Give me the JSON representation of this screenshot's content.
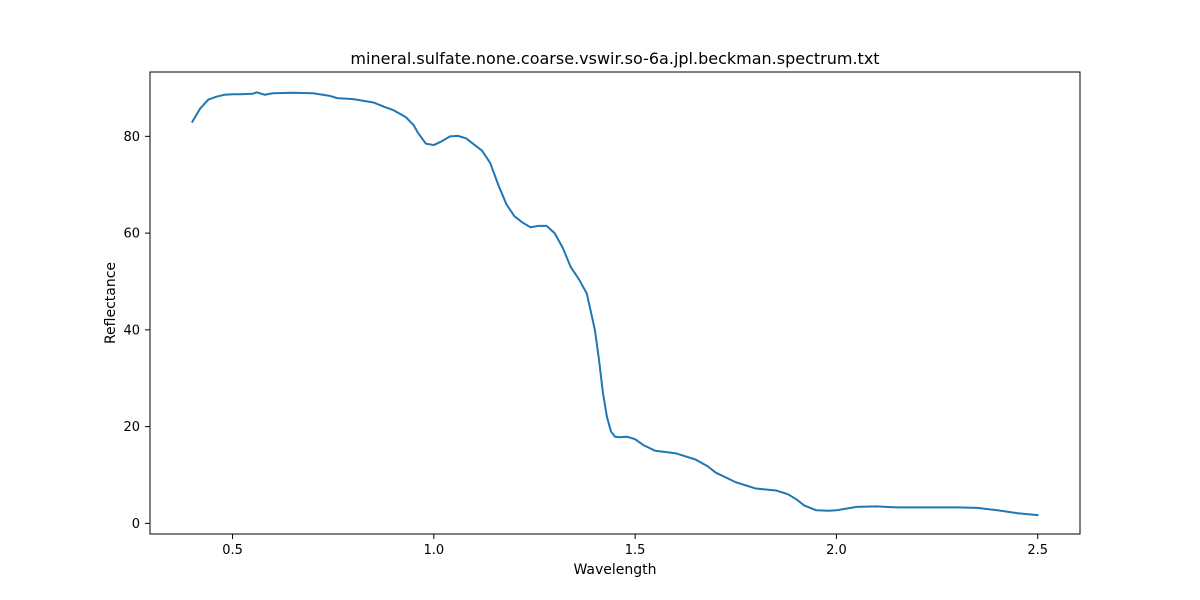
{
  "chart_data": {
    "type": "line",
    "title": "mineral.sulfate.none.coarse.vswir.so-6a.jpl.beckman.spectrum.txt",
    "xlabel": "Wavelength",
    "ylabel": "Reflectance",
    "xlim": [
      0.295,
      2.605
    ],
    "ylim": [
      -2.2,
      93.3
    ],
    "xticks": [
      0.5,
      1.0,
      1.5,
      2.0,
      2.5
    ],
    "xtick_labels": [
      "0.5",
      "1.0",
      "1.5",
      "2.0",
      "2.5"
    ],
    "yticks": [
      0,
      20,
      40,
      60,
      80
    ],
    "ytick_labels": [
      "0",
      "20",
      "40",
      "60",
      "80"
    ],
    "grid": false,
    "legend": "none",
    "series": [
      {
        "color": "#1f77b4",
        "x": [
          0.4,
          0.42,
          0.44,
          0.46,
          0.48,
          0.5,
          0.52,
          0.55,
          0.56,
          0.58,
          0.6,
          0.65,
          0.7,
          0.74,
          0.76,
          0.78,
          0.8,
          0.85,
          0.88,
          0.9,
          0.93,
          0.95,
          0.96,
          0.98,
          1.0,
          1.02,
          1.04,
          1.06,
          1.08,
          1.1,
          1.12,
          1.14,
          1.16,
          1.18,
          1.2,
          1.22,
          1.24,
          1.26,
          1.28,
          1.3,
          1.32,
          1.34,
          1.36,
          1.38,
          1.4,
          1.41,
          1.42,
          1.43,
          1.44,
          1.45,
          1.46,
          1.48,
          1.5,
          1.52,
          1.55,
          1.6,
          1.65,
          1.68,
          1.7,
          1.75,
          1.8,
          1.85,
          1.88,
          1.9,
          1.92,
          1.95,
          1.98,
          2.0,
          2.05,
          2.1,
          2.15,
          2.2,
          2.3,
          2.35,
          2.4,
          2.45,
          2.5
        ],
        "y": [
          83.0,
          85.8,
          87.6,
          88.2,
          88.6,
          88.7,
          88.7,
          88.8,
          89.1,
          88.6,
          88.9,
          89.0,
          88.9,
          88.4,
          87.9,
          87.8,
          87.7,
          87.0,
          86.0,
          85.4,
          84.0,
          82.3,
          80.8,
          78.5,
          78.2,
          79.0,
          80.0,
          80.1,
          79.6,
          78.3,
          77.0,
          74.5,
          70.0,
          66.0,
          63.5,
          62.2,
          61.2,
          61.5,
          61.5,
          60.0,
          57.0,
          53.0,
          50.5,
          47.5,
          40.0,
          34.0,
          27.0,
          22.0,
          19.0,
          17.9,
          17.8,
          17.9,
          17.4,
          16.2,
          15.0,
          14.5,
          13.2,
          11.8,
          10.5,
          8.5,
          7.2,
          6.8,
          6.0,
          5.0,
          3.7,
          2.7,
          2.6,
          2.7,
          3.4,
          3.5,
          3.3,
          3.3,
          3.3,
          3.2,
          2.7,
          2.1,
          1.7
        ]
      }
    ]
  }
}
